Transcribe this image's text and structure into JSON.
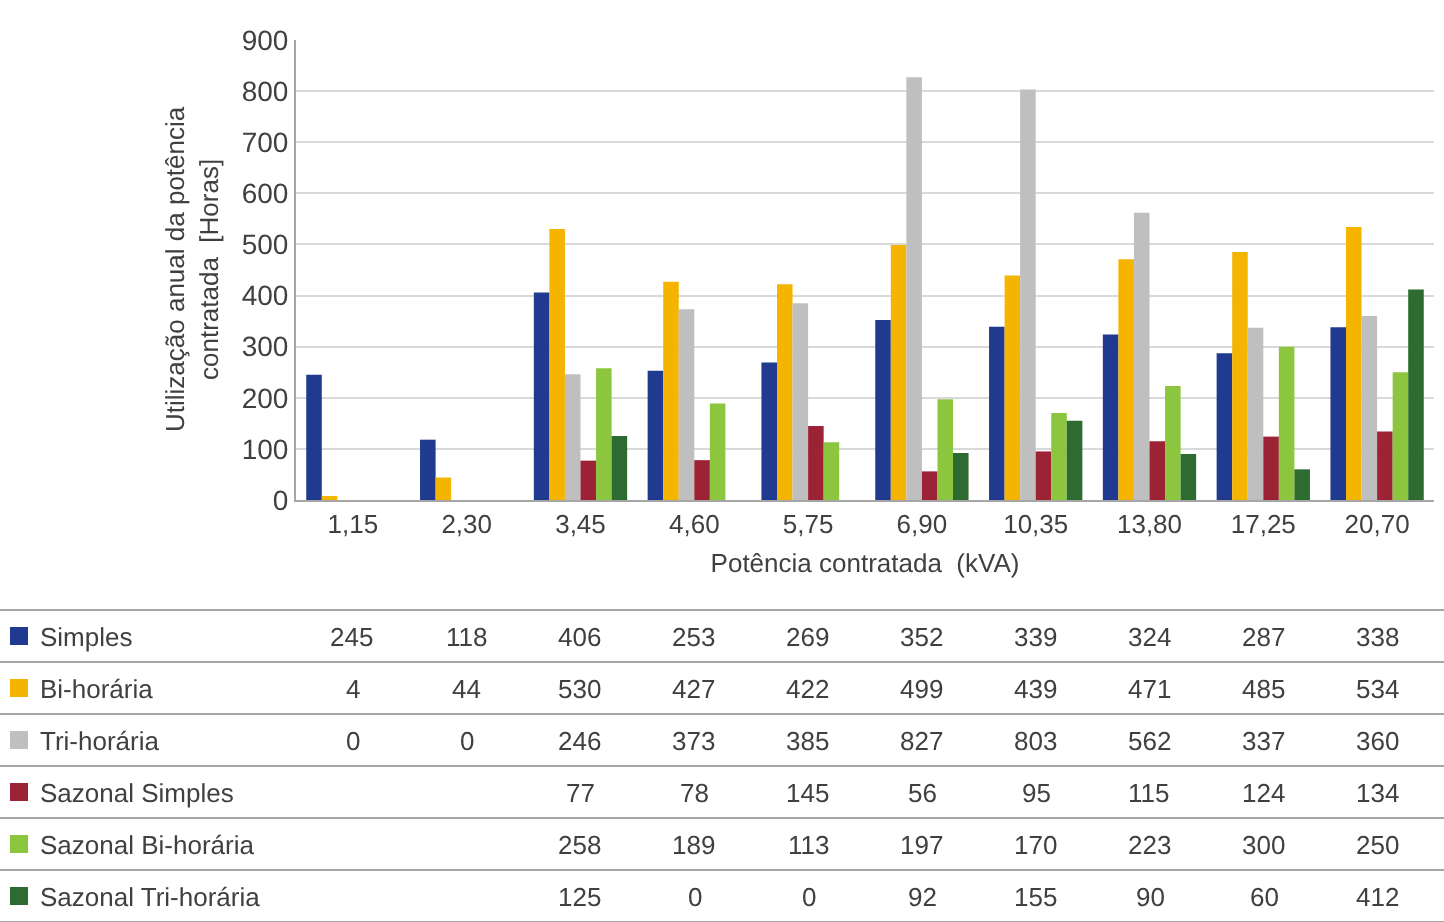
{
  "chart_data": {
    "type": "bar",
    "xlabel": "Potência contratada  (kVA)",
    "ylabel": "Utilização anual da potência contratada  [Horas]",
    "categories": [
      "1,15",
      "2,30",
      "3,45",
      "4,60",
      "5,75",
      "6,90",
      "10,35",
      "13,80",
      "17,25",
      "20,70"
    ],
    "series": [
      {
        "name": "Simples",
        "color": "#1f3a8f",
        "values": [
          245,
          118,
          406,
          253,
          269,
          352,
          339,
          324,
          287,
          338
        ]
      },
      {
        "name": "Bi-horária",
        "color": "#f5b400",
        "values": [
          4,
          44,
          530,
          427,
          422,
          499,
          439,
          471,
          485,
          534
        ]
      },
      {
        "name": "Tri-horária",
        "color": "#bfbfbf",
        "values": [
          0,
          0,
          246,
          373,
          385,
          827,
          803,
          562,
          337,
          360
        ]
      },
      {
        "name": "Sazonal Simples",
        "color": "#9b2335",
        "values": [
          null,
          null,
          77,
          78,
          145,
          56,
          95,
          115,
          124,
          134
        ]
      },
      {
        "name": "Sazonal Bi-horária",
        "color": "#8cc63f",
        "values": [
          null,
          null,
          258,
          189,
          113,
          197,
          170,
          223,
          300,
          250
        ]
      },
      {
        "name": "Sazonal Tri-horária",
        "color": "#2e6b30",
        "values": [
          null,
          null,
          125,
          0,
          0,
          92,
          155,
          90,
          60,
          412
        ]
      }
    ],
    "ylim": [
      0,
      900
    ],
    "yticks": [
      0,
      100,
      200,
      300,
      400,
      500,
      600,
      700,
      800,
      900
    ],
    "grid": "y",
    "data_labels": true,
    "legend": "bottom"
  }
}
